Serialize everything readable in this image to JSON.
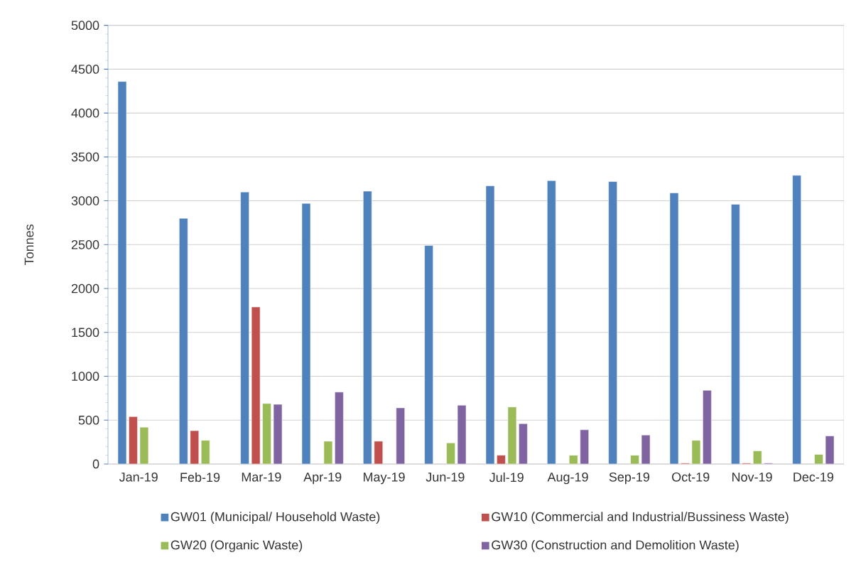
{
  "chart_data": {
    "type": "bar",
    "ylabel": "Tonnes",
    "categories": [
      "Jan-19",
      "Feb-19",
      "Mar-19",
      "Apr-19",
      "May-19",
      "Jun-19",
      "Jul-19",
      "Aug-19",
      "Sep-19",
      "Oct-19",
      "Nov-19",
      "Dec-19"
    ],
    "series": [
      {
        "name": "GW01 (Municipal/ Household Waste)",
        "color": "#4f81bd",
        "values": [
          4360,
          2800,
          3100,
          2970,
          3110,
          2490,
          3170,
          3230,
          3220,
          3090,
          2960,
          3290
        ]
      },
      {
        "name": "GW10 (Commercial and Industrial/Bussiness Waste)",
        "color": "#c0504d",
        "values": [
          540,
          380,
          1790,
          null,
          260,
          null,
          100,
          null,
          null,
          10,
          10,
          null
        ]
      },
      {
        "name": "GW20 (Organic Waste)",
        "color": "#9bbb59",
        "values": [
          420,
          270,
          690,
          260,
          null,
          240,
          650,
          100,
          100,
          270,
          150,
          110
        ]
      },
      {
        "name": "GW30 (Construction and Demolition Waste)",
        "color": "#8064a2",
        "values": [
          null,
          null,
          680,
          820,
          640,
          670,
          460,
          390,
          330,
          840,
          10,
          320
        ]
      }
    ],
    "ylim": [
      0,
      5000
    ],
    "yticks": [
      0,
      500,
      1000,
      1500,
      2000,
      2500,
      3000,
      3500,
      4000,
      4500,
      5000
    ],
    "grid": "y",
    "legend": "bottom"
  }
}
